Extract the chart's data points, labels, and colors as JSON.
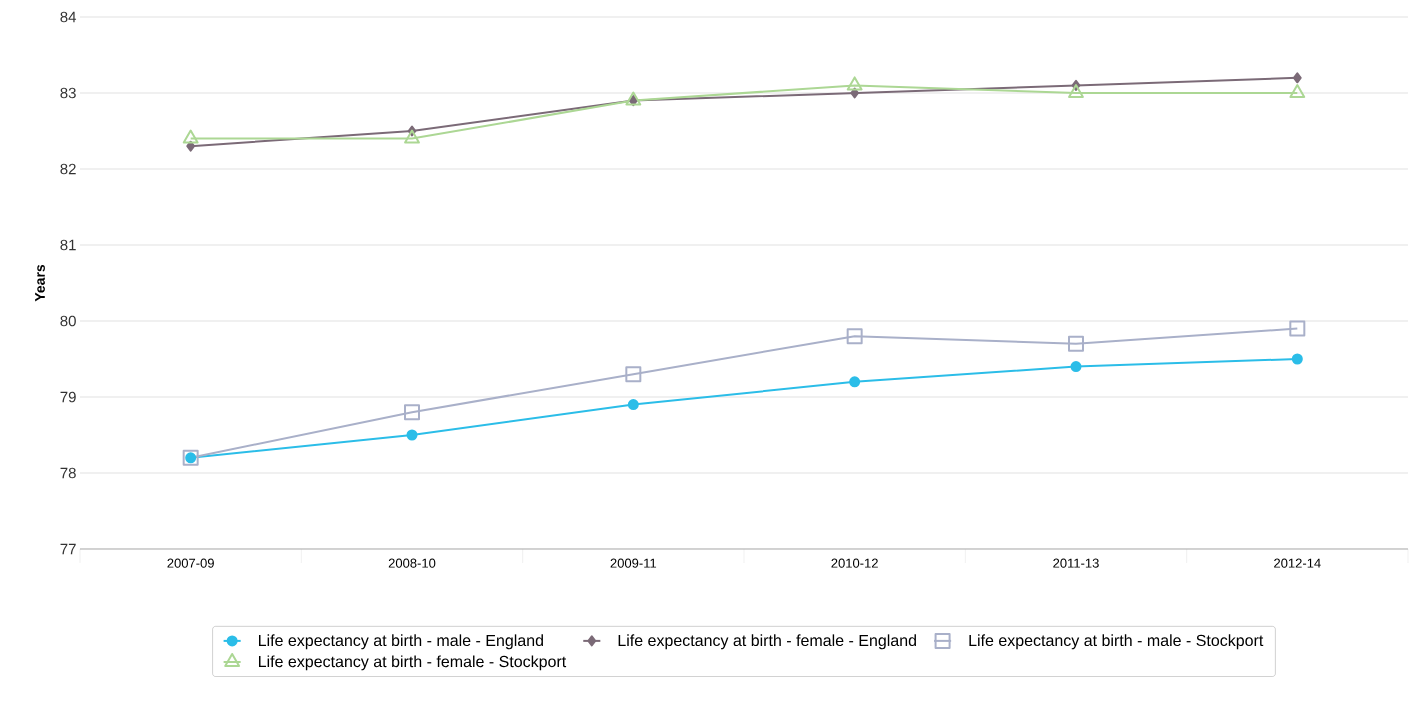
{
  "chart_data": {
    "type": "line",
    "ylabel": "Years",
    "categories": [
      "2007-09",
      "2008-10",
      "2009-11",
      "2010-12",
      "2011-13",
      "2012-14"
    ],
    "series": [
      {
        "name": "Life expectancy at birth - male - England",
        "color": "#2bbde8",
        "marker": "circle",
        "values": [
          78.2,
          78.5,
          78.9,
          79.2,
          79.4,
          79.5
        ]
      },
      {
        "name": "Life expectancy at birth - female - England",
        "color": "#7b6a77",
        "marker": "diamond",
        "values": [
          82.3,
          82.5,
          82.9,
          83.0,
          83.1,
          83.2
        ]
      },
      {
        "name": "Life expectancy at birth - male - Stockport",
        "color": "#a9b0c9",
        "marker": "square",
        "values": [
          78.2,
          78.8,
          79.3,
          79.8,
          79.7,
          79.9
        ]
      },
      {
        "name": "Life expectancy at birth - female - Stockport",
        "color": "#acd794",
        "marker": "triangle",
        "values": [
          82.4,
          82.4,
          82.9,
          83.1,
          83.0,
          83.0
        ]
      }
    ],
    "ylim": [
      77,
      84
    ],
    "yticks": [
      77,
      78,
      79,
      80,
      81,
      82,
      83,
      84
    ],
    "grid": "y",
    "legend": "bottom"
  }
}
